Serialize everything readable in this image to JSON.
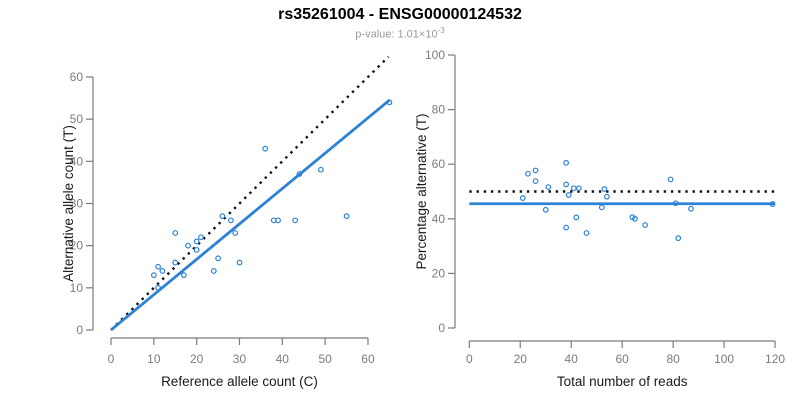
{
  "header": {
    "title": "rs35261004 - ENSG00000124532",
    "subtitle_text": "p-value: 1.01×10",
    "subtitle_exponent": "-3"
  },
  "colors": {
    "blue": "#2d82d7",
    "black": "#111111",
    "axis_gray": "#7b7b7b",
    "tick_label_gray": "#7b7b7b",
    "axis_title_black": "#1a1a1a",
    "subtitle_gray": "#9a9a9a",
    "background": "#ffffff"
  },
  "chart_data": [
    {
      "name": "allele-counts-scatter",
      "type": "scatter",
      "title": "",
      "xlabel": "Reference allele count (C)",
      "ylabel": "Alternative allele count (T)",
      "xlim": [
        0,
        65
      ],
      "ylim": [
        0,
        66
      ],
      "xticks": [
        0,
        10,
        20,
        30,
        40,
        50,
        60
      ],
      "yticks": [
        0,
        10,
        20,
        30,
        40,
        50,
        60
      ],
      "grid": false,
      "legend": "none",
      "marker": "open-circle",
      "points": [
        [
          10,
          13
        ],
        [
          11,
          15
        ],
        [
          11,
          10
        ],
        [
          12,
          14
        ],
        [
          15,
          23
        ],
        [
          15,
          16
        ],
        [
          17,
          13
        ],
        [
          18,
          20
        ],
        [
          20,
          19
        ],
        [
          20,
          21
        ],
        [
          21,
          22
        ],
        [
          24,
          14
        ],
        [
          25,
          17
        ],
        [
          26,
          27
        ],
        [
          28,
          26
        ],
        [
          29,
          23
        ],
        [
          30,
          16
        ],
        [
          36,
          43
        ],
        [
          38,
          26
        ],
        [
          39,
          26
        ],
        [
          43,
          26
        ],
        [
          44,
          37
        ],
        [
          49,
          38
        ],
        [
          55,
          27
        ],
        [
          65,
          54
        ]
      ],
      "lines": [
        {
          "label": "identity-line",
          "style": "dotted",
          "color": "black",
          "from": [
            0,
            0
          ],
          "to": [
            64.8,
            64.8
          ]
        },
        {
          "label": "fit-line",
          "style": "solid",
          "color": "blue",
          "from": [
            0,
            0
          ],
          "to": [
            65,
            54.5
          ]
        }
      ]
    },
    {
      "name": "percentage-vs-reads-scatter",
      "type": "scatter",
      "title": "",
      "xlabel": "Total number of reads",
      "ylabel": "Percentage alternative (T)",
      "xlim": [
        0,
        120
      ],
      "ylim": [
        0,
        100
      ],
      "xticks": [
        0,
        20,
        40,
        60,
        80,
        100,
        120
      ],
      "yticks": [
        0,
        20,
        40,
        60,
        80,
        100
      ],
      "grid": false,
      "legend": "none",
      "marker": "open-circle",
      "points": [
        [
          23,
          56.5
        ],
        [
          26,
          57.7
        ],
        [
          21,
          47.6
        ],
        [
          26,
          53.8
        ],
        [
          38,
          60.5
        ],
        [
          31,
          51.6
        ],
        [
          30,
          43.3
        ],
        [
          38,
          52.6
        ],
        [
          39,
          48.7
        ],
        [
          41,
          51.2
        ],
        [
          43,
          51.2
        ],
        [
          38,
          36.8
        ],
        [
          42,
          40.5
        ],
        [
          53,
          50.9
        ],
        [
          54,
          48.1
        ],
        [
          52,
          44.2
        ],
        [
          46,
          34.8
        ],
        [
          79,
          54.4
        ],
        [
          64,
          40.6
        ],
        [
          65,
          40.0
        ],
        [
          69,
          37.7
        ],
        [
          81,
          45.7
        ],
        [
          87,
          43.7
        ],
        [
          82,
          32.9
        ],
        [
          119,
          45.4
        ]
      ],
      "lines": [
        {
          "label": "expected-50-percent-line",
          "style": "dotted",
          "color": "black",
          "from": [
            0,
            50
          ],
          "to": [
            120,
            50
          ]
        },
        {
          "label": "mean-percentage-line",
          "style": "solid",
          "color": "blue",
          "from": [
            0,
            45.5
          ],
          "to": [
            120,
            45.5
          ]
        }
      ]
    }
  ]
}
